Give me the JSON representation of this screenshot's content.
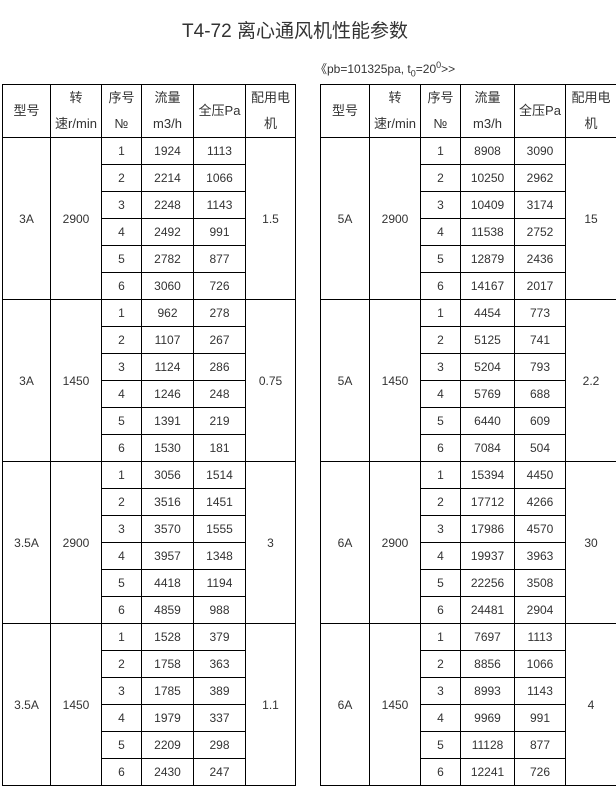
{
  "title": "T4-72 离心通风机性能参数",
  "subtitle": {
    "prefix": "《pb=101325pa, t",
    "sub": "0",
    "mid": "=20",
    "sup": "0",
    "suffix": ">>"
  },
  "headers": {
    "model": "型号",
    "speed_1": "转",
    "speed_2": "速r/min",
    "seq_1": "序号",
    "seq_2": "№",
    "flow_1": "流量",
    "flow_2": "m3/h",
    "pressure": "全压Pa",
    "motor_1": "配用电",
    "motor_2": "机"
  },
  "left_table": [
    {
      "model": "3A",
      "speed": "2900",
      "motor": "1.5",
      "rows": [
        [
          "1",
          "1924",
          "1113"
        ],
        [
          "2",
          "2214",
          "1066"
        ],
        [
          "3",
          "2248",
          "1143"
        ],
        [
          "4",
          "2492",
          "991"
        ],
        [
          "5",
          "2782",
          "877"
        ],
        [
          "6",
          "3060",
          "726"
        ]
      ]
    },
    {
      "model": "3A",
      "speed": "1450",
      "motor": "0.75",
      "rows": [
        [
          "1",
          "962",
          "278"
        ],
        [
          "2",
          "1107",
          "267"
        ],
        [
          "3",
          "1124",
          "286"
        ],
        [
          "4",
          "1246",
          "248"
        ],
        [
          "5",
          "1391",
          "219"
        ],
        [
          "6",
          "1530",
          "181"
        ]
      ]
    },
    {
      "model": "3.5A",
      "speed": "2900",
      "motor": "3",
      "rows": [
        [
          "1",
          "3056",
          "1514"
        ],
        [
          "2",
          "3516",
          "1451"
        ],
        [
          "3",
          "3570",
          "1555"
        ],
        [
          "4",
          "3957",
          "1348"
        ],
        [
          "5",
          "4418",
          "1194"
        ],
        [
          "6",
          "4859",
          "988"
        ]
      ]
    },
    {
      "model": "3.5A",
      "speed": "1450",
      "motor": "1.1",
      "rows": [
        [
          "1",
          "1528",
          "379"
        ],
        [
          "2",
          "1758",
          "363"
        ],
        [
          "3",
          "1785",
          "389"
        ],
        [
          "4",
          "1979",
          "337"
        ],
        [
          "5",
          "2209",
          "298"
        ],
        [
          "6",
          "2430",
          "247"
        ]
      ]
    }
  ],
  "right_table": [
    {
      "model": "5A",
      "speed": "2900",
      "motor": "15",
      "rows": [
        [
          "1",
          "8908",
          "3090"
        ],
        [
          "2",
          "10250",
          "2962"
        ],
        [
          "3",
          "10409",
          "3174"
        ],
        [
          "4",
          "11538",
          "2752"
        ],
        [
          "5",
          "12879",
          "2436"
        ],
        [
          "6",
          "14167",
          "2017"
        ]
      ]
    },
    {
      "model": "5A",
      "speed": "1450",
      "motor": "2.2",
      "rows": [
        [
          "1",
          "4454",
          "773"
        ],
        [
          "2",
          "5125",
          "741"
        ],
        [
          "3",
          "5204",
          "793"
        ],
        [
          "4",
          "5769",
          "688"
        ],
        [
          "5",
          "6440",
          "609"
        ],
        [
          "6",
          "7084",
          "504"
        ]
      ]
    },
    {
      "model": "6A",
      "speed": "2900",
      "motor": "30",
      "rows": [
        [
          "1",
          "15394",
          "4450"
        ],
        [
          "2",
          "17712",
          "4266"
        ],
        [
          "3",
          "17986",
          "4570"
        ],
        [
          "4",
          "19937",
          "3963"
        ],
        [
          "5",
          "22256",
          "3508"
        ],
        [
          "6",
          "24481",
          "2904"
        ]
      ]
    },
    {
      "model": "6A",
      "speed": "1450",
      "motor": "4",
      "rows": [
        [
          "1",
          "7697",
          "1113"
        ],
        [
          "2",
          "8856",
          "1066"
        ],
        [
          "3",
          "8993",
          "1143"
        ],
        [
          "4",
          "9969",
          "991"
        ],
        [
          "5",
          "11128",
          "877"
        ],
        [
          "6",
          "12241",
          "726"
        ]
      ]
    }
  ]
}
